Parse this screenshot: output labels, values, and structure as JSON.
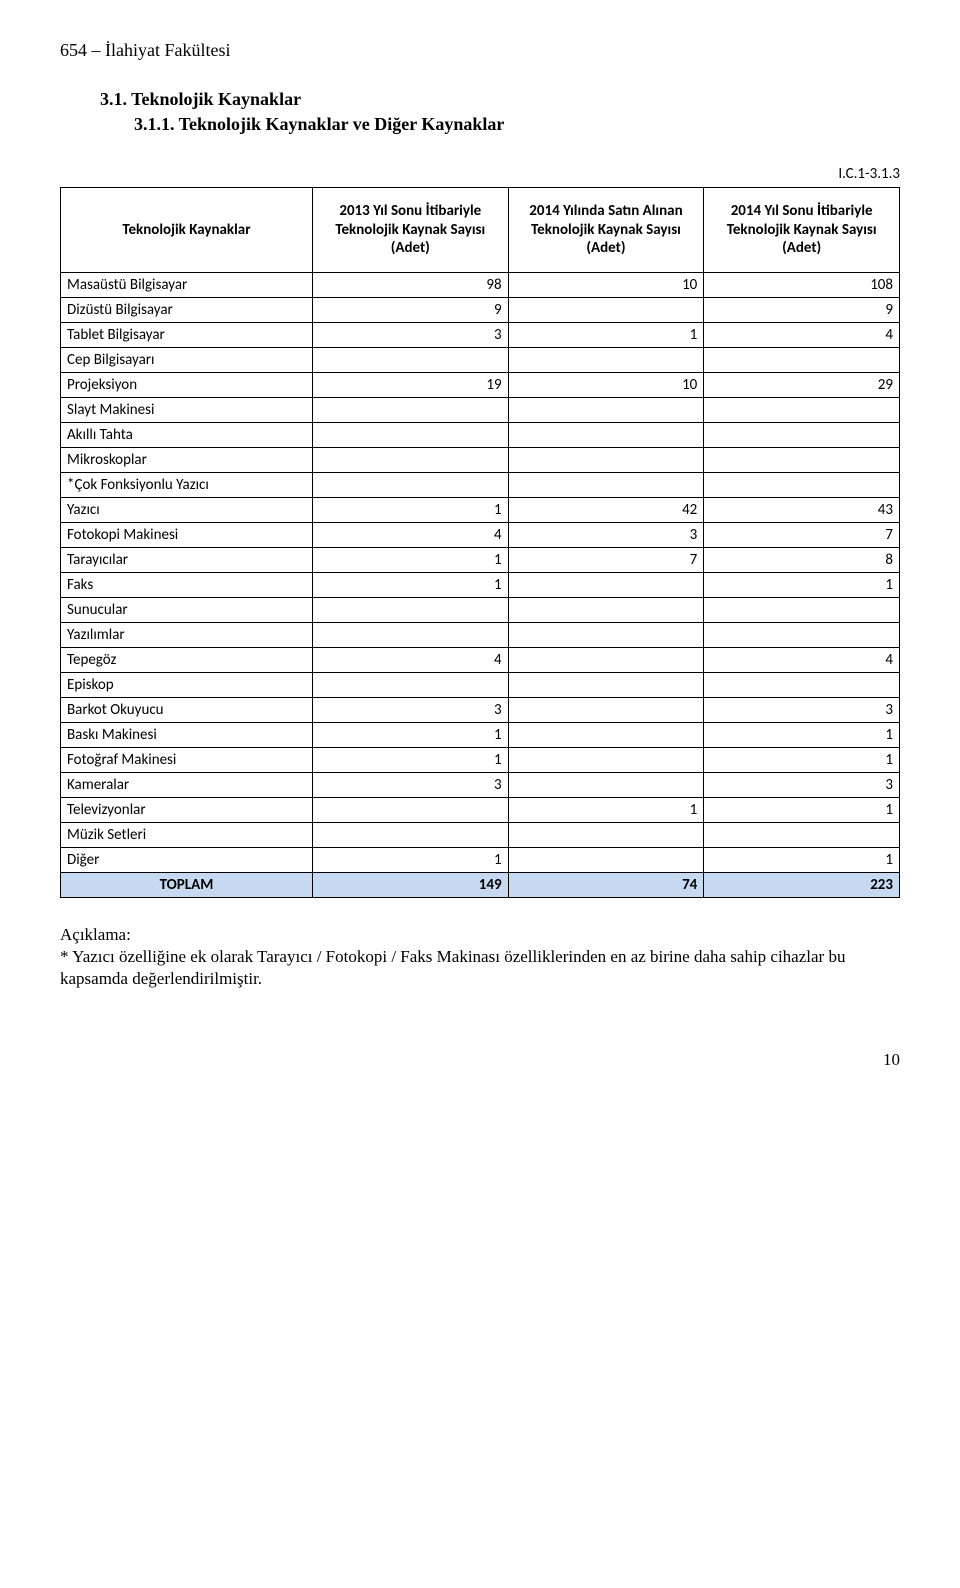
{
  "page": {
    "header": "654 – İlahiyat Fakültesi",
    "section_heading": "3.1.  Teknolojik Kaynaklar",
    "subsection_heading": "3.1.1. Teknolojik Kaynaklar ve Diğer Kaynaklar",
    "table_code": "I.C.1-3.1.3",
    "page_number": "10"
  },
  "table": {
    "columns": [
      "Teknolojik Kaynaklar",
      "2013 Yıl Sonu İtibariyle Teknolojik Kaynak Sayısı (Adet)",
      "2014 Yılında Satın Alınan Teknolojik Kaynak Sayısı (Adet)",
      "2014 Yıl Sonu İtibariyle Teknolojik Kaynak Sayısı (Adet)"
    ],
    "rows": [
      {
        "label": "Masaüstü Bilgisayar",
        "c1": "98",
        "c2": "10",
        "c3": "108"
      },
      {
        "label": "Dizüstü Bilgisayar",
        "c1": "9",
        "c2": "",
        "c3": "9"
      },
      {
        "label": "Tablet Bilgisayar",
        "c1": "3",
        "c2": "1",
        "c3": "4"
      },
      {
        "label": "Cep Bilgisayarı",
        "c1": "",
        "c2": "",
        "c3": ""
      },
      {
        "label": "Projeksiyon",
        "c1": "19",
        "c2": "10",
        "c3": "29"
      },
      {
        "label": "Slayt Makinesi",
        "c1": "",
        "c2": "",
        "c3": ""
      },
      {
        "label": "Akıllı Tahta",
        "c1": "",
        "c2": "",
        "c3": ""
      },
      {
        "label": "Mikroskoplar",
        "c1": "",
        "c2": "",
        "c3": ""
      },
      {
        "label": "*Çok Fonksiyonlu Yazıcı",
        "c1": "",
        "c2": "",
        "c3": ""
      },
      {
        "label": "Yazıcı",
        "c1": "1",
        "c2": "42",
        "c3": "43"
      },
      {
        "label": "Fotokopi Makinesi",
        "c1": "4",
        "c2": "3",
        "c3": "7"
      },
      {
        "label": "Tarayıcılar",
        "c1": "1",
        "c2": "7",
        "c3": "8"
      },
      {
        "label": "Faks",
        "c1": "1",
        "c2": "",
        "c3": "1"
      },
      {
        "label": "Sunucular",
        "c1": "",
        "c2": "",
        "c3": ""
      },
      {
        "label": "Yazılımlar",
        "c1": "",
        "c2": "",
        "c3": ""
      },
      {
        "label": "Tepegöz",
        "c1": "4",
        "c2": "",
        "c3": "4"
      },
      {
        "label": "Episkop",
        "c1": "",
        "c2": "",
        "c3": ""
      },
      {
        "label": "Barkot Okuyucu",
        "c1": "3",
        "c2": "",
        "c3": "3"
      },
      {
        "label": "Baskı Makinesi",
        "c1": "1",
        "c2": "",
        "c3": "1"
      },
      {
        "label": "Fotoğraf Makinesi",
        "c1": "1",
        "c2": "",
        "c3": "1"
      },
      {
        "label": "Kameralar",
        "c1": "3",
        "c2": "",
        "c3": "3"
      },
      {
        "label": "Televizyonlar",
        "c1": "",
        "c2": "1",
        "c3": "1"
      },
      {
        "label": "Müzik Setleri",
        "c1": "",
        "c2": "",
        "c3": ""
      },
      {
        "label": "Diğer",
        "c1": "1",
        "c2": "",
        "c3": "1"
      }
    ],
    "total": {
      "label": "TOPLAM",
      "c1": "149",
      "c2": "74",
      "c3": "223"
    }
  },
  "explanation": {
    "heading": "Açıklama:",
    "body": "* Yazıcı özelliğine ek olarak Tarayıcı / Fotokopi / Faks Makinası özelliklerinden en az birine daha sahip cihazlar bu kapsamda değerlendirilmiştir."
  },
  "style": {
    "total_row_bg": "#c6d9f1",
    "border_color": "#000000",
    "body_bg": "#ffffff"
  }
}
